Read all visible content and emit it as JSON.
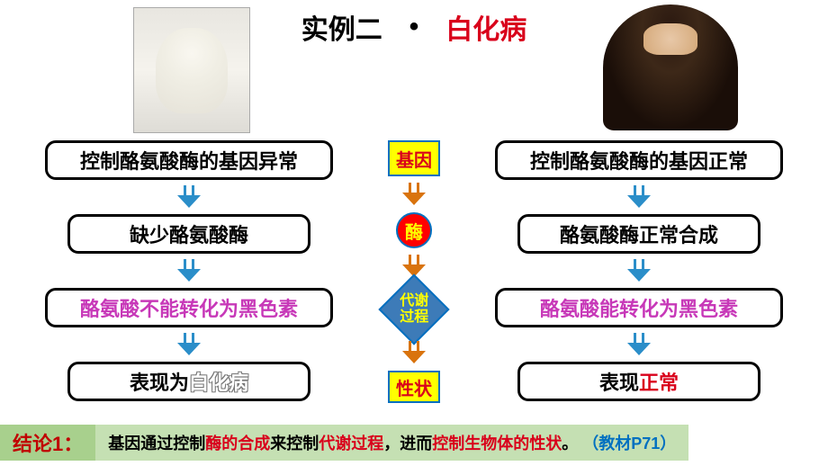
{
  "title": {
    "label": "实例二",
    "dot": "•",
    "disease": "白化病"
  },
  "center": {
    "gene": "基因",
    "enzyme": "酶",
    "metabolism_l1": "代谢",
    "metabolism_l2": "过程",
    "trait": "性状"
  },
  "left": {
    "box1": "控制酪氨酸酶的基因异常",
    "box2": "缺少酪氨酸酶",
    "box3": "酪氨酸不能转化为黑色素",
    "box4_a": "表现为",
    "box4_b": "白化病"
  },
  "right": {
    "box1": "控制酪氨酸酶的基因正常",
    "box2": "酪氨酸酶正常合成",
    "box3": "酪氨酸能转化为黑色素",
    "box4_a": "表现",
    "box4_b": "正常"
  },
  "conclusion": {
    "label": "结论1：",
    "p1": "基因通过控制",
    "p2": "酶的合成",
    "p3": "来控制",
    "p4": "代谢过程",
    "p5": "，进而",
    "p6": "控制生物体的性状",
    "p7": "。",
    "p8": "（教材P71）"
  },
  "colors": {
    "box_border": "#000000",
    "arrow_blue": "#2b8ec9",
    "arrow_orange": "#d9730d",
    "gene_bg": "#ffff00",
    "enzyme_bg": "#ff0000",
    "metab_bg": "#3d7bb8",
    "concl_label_bg": "#a8d08d",
    "concl_text_bg": "#c5e0b3"
  }
}
